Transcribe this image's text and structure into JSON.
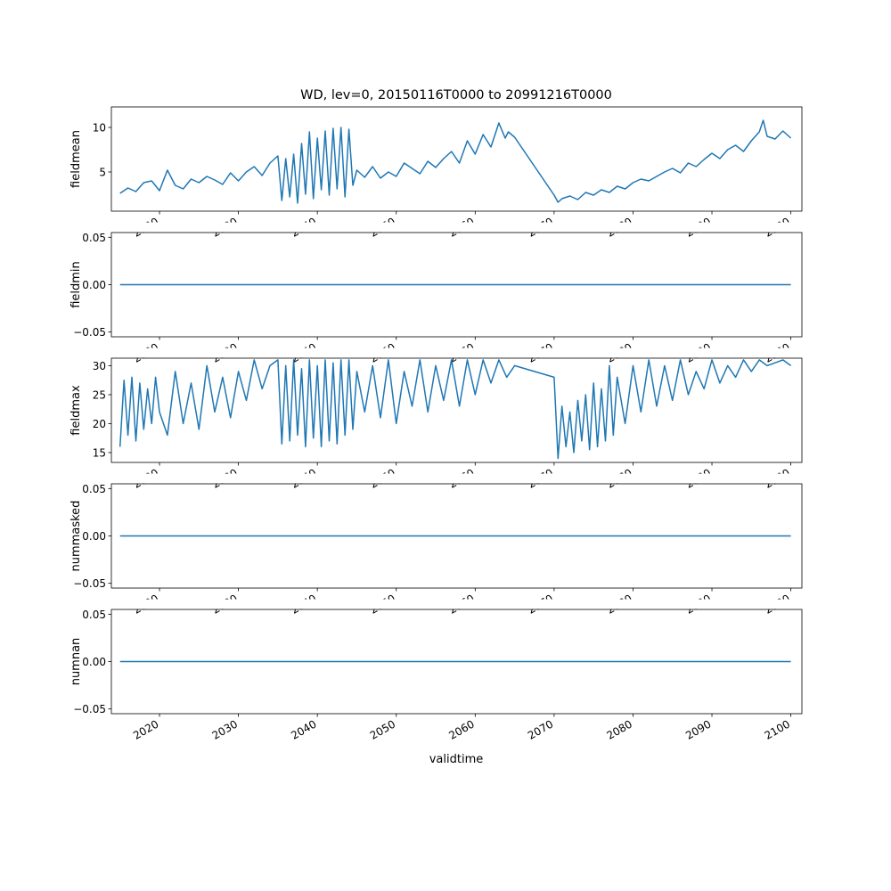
{
  "figure_title": "WD, lev=0, 20150116T0000 to 20991216T0000",
  "xlabel": "validtime",
  "line_color": "#1f77b4",
  "x_ticks": [
    "2020",
    "2030",
    "2040",
    "2050",
    "2060",
    "2070",
    "2080",
    "2090",
    "2100"
  ],
  "chart_data": [
    {
      "type": "line",
      "ylabel": "fieldmean",
      "xlim": [
        2013.9,
        2101.4
      ],
      "ylim": [
        0.6,
        12.3
      ],
      "yticks": [
        "5",
        "10"
      ],
      "ytick_values": [
        5,
        10
      ],
      "x": [
        2015.0,
        2016.0,
        2017.0,
        2018.0,
        2019.0,
        2020.0,
        2021.0,
        2022.0,
        2023.0,
        2024.0,
        2025.0,
        2026.0,
        2027.0,
        2028.0,
        2029.0,
        2030.0,
        2031.0,
        2032.0,
        2033.0,
        2034.0,
        2035.0,
        2035.5,
        2036.0,
        2036.5,
        2037.0,
        2037.5,
        2038.0,
        2038.5,
        2039.0,
        2039.5,
        2040.0,
        2040.5,
        2041.0,
        2041.5,
        2042.0,
        2042.5,
        2043.0,
        2043.5,
        2044.0,
        2044.5,
        2045.0,
        2046.0,
        2047.0,
        2048.0,
        2049.0,
        2050.0,
        2051.0,
        2052.0,
        2053.0,
        2054.0,
        2055.0,
        2056.0,
        2057.0,
        2058.0,
        2059.0,
        2060.0,
        2061.0,
        2062.0,
        2063.0,
        2063.8,
        2064.2,
        2065.0,
        2070.0,
        2070.5,
        2071.0,
        2072.0,
        2073.0,
        2074.0,
        2075.0,
        2076.0,
        2077.0,
        2078.0,
        2079.0,
        2080.0,
        2081.0,
        2082.0,
        2083.0,
        2084.0,
        2085.0,
        2086.0,
        2087.0,
        2088.0,
        2089.0,
        2090.0,
        2091.0,
        2092.0,
        2093.0,
        2094.0,
        2095.0,
        2096.0,
        2096.5,
        2097.0,
        2098.0,
        2099.0,
        2100.0
      ],
      "y": [
        2.6,
        3.2,
        2.8,
        3.8,
        4.0,
        2.9,
        5.2,
        3.5,
        3.1,
        4.2,
        3.8,
        4.5,
        4.1,
        3.6,
        4.9,
        4.0,
        5.0,
        5.6,
        4.6,
        6.0,
        6.8,
        1.8,
        6.5,
        2.2,
        7.0,
        1.5,
        8.2,
        2.5,
        9.5,
        2.0,
        8.8,
        3.0,
        9.6,
        2.4,
        9.9,
        3.1,
        10.0,
        2.2,
        9.8,
        3.5,
        5.2,
        4.4,
        5.6,
        4.3,
        5.0,
        4.5,
        6.0,
        5.4,
        4.8,
        6.2,
        5.5,
        6.5,
        7.3,
        6.0,
        8.5,
        7.0,
        9.2,
        7.8,
        10.5,
        8.8,
        9.5,
        8.9,
        2.4,
        1.6,
        2.0,
        2.3,
        1.9,
        2.7,
        2.4,
        3.0,
        2.7,
        3.4,
        3.1,
        3.8,
        4.2,
        4.0,
        4.5,
        5.0,
        5.4,
        4.9,
        6.0,
        5.6,
        6.4,
        7.1,
        6.5,
        7.5,
        8.0,
        7.3,
        8.5,
        9.5,
        10.8,
        9.0,
        8.7,
        9.6,
        8.8
      ]
    },
    {
      "type": "line",
      "ylabel": "fieldmin",
      "xlim": [
        2013.9,
        2101.4
      ],
      "ylim": [
        -0.055,
        0.055
      ],
      "yticks": [
        "−0.05",
        "0.00",
        "0.05"
      ],
      "ytick_values": [
        -0.05,
        0.0,
        0.05
      ],
      "x": [
        2015.0,
        2100.0
      ],
      "y": [
        0.0,
        0.0
      ]
    },
    {
      "type": "line",
      "ylabel": "fieldmax",
      "xlim": [
        2013.9,
        2101.4
      ],
      "ylim": [
        13.3,
        31.3
      ],
      "yticks": [
        "15",
        "20",
        "25",
        "30"
      ],
      "ytick_values": [
        15,
        20,
        25,
        30
      ],
      "x": [
        2015.0,
        2015.5,
        2016.0,
        2016.5,
        2017.0,
        2017.5,
        2018.0,
        2018.5,
        2019.0,
        2019.5,
        2020.0,
        2021.0,
        2022.0,
        2023.0,
        2024.0,
        2025.0,
        2026.0,
        2027.0,
        2028.0,
        2029.0,
        2030.0,
        2031.0,
        2032.0,
        2033.0,
        2034.0,
        2035.0,
        2035.5,
        2036.0,
        2036.5,
        2037.0,
        2037.5,
        2038.0,
        2038.5,
        2039.0,
        2039.5,
        2040.0,
        2040.5,
        2041.0,
        2041.5,
        2042.0,
        2042.5,
        2043.0,
        2043.5,
        2044.0,
        2044.5,
        2045.0,
        2046.0,
        2047.0,
        2048.0,
        2049.0,
        2050.0,
        2051.0,
        2052.0,
        2053.0,
        2054.0,
        2055.0,
        2056.0,
        2057.0,
        2058.0,
        2059.0,
        2060.0,
        2061.0,
        2062.0,
        2063.0,
        2064.0,
        2065.0,
        2070.0,
        2070.5,
        2071.0,
        2071.5,
        2072.0,
        2072.5,
        2073.0,
        2073.5,
        2074.0,
        2074.5,
        2075.0,
        2075.5,
        2076.0,
        2076.5,
        2077.0,
        2077.5,
        2078.0,
        2079.0,
        2080.0,
        2081.0,
        2082.0,
        2083.0,
        2084.0,
        2085.0,
        2086.0,
        2087.0,
        2088.0,
        2089.0,
        2090.0,
        2091.0,
        2092.0,
        2093.0,
        2094.0,
        2095.0,
        2096.0,
        2097.0,
        2098.0,
        2099.0,
        2100.0
      ],
      "y": [
        16.0,
        27.5,
        18.0,
        28.0,
        17.0,
        27.0,
        19.0,
        26.0,
        20.0,
        28.0,
        22.0,
        18.0,
        29.0,
        20.0,
        27.0,
        19.0,
        30.0,
        22.0,
        28.0,
        21.0,
        29.0,
        24.0,
        31.0,
        26.0,
        30.0,
        31.0,
        16.5,
        30.0,
        17.0,
        31.0,
        18.0,
        29.5,
        16.0,
        31.0,
        17.5,
        30.0,
        16.0,
        31.0,
        17.0,
        30.5,
        16.5,
        31.0,
        18.0,
        31.0,
        19.0,
        29.0,
        22.0,
        30.0,
        21.0,
        31.0,
        20.0,
        29.0,
        23.0,
        31.0,
        22.0,
        30.0,
        24.0,
        31.0,
        23.0,
        31.0,
        25.0,
        31.0,
        27.0,
        31.0,
        28.0,
        30.0,
        28.0,
        14.0,
        23.0,
        16.0,
        22.0,
        15.0,
        24.0,
        17.0,
        25.0,
        15.5,
        27.0,
        16.0,
        26.0,
        17.0,
        30.0,
        18.0,
        28.0,
        20.0,
        30.0,
        22.0,
        31.0,
        23.0,
        30.0,
        24.0,
        31.0,
        25.0,
        29.0,
        26.0,
        31.0,
        27.0,
        30.0,
        28.0,
        31.0,
        29.0,
        31.0,
        30.0,
        30.5,
        31.0,
        30.0
      ]
    },
    {
      "type": "line",
      "ylabel": "nummasked",
      "xlim": [
        2013.9,
        2101.4
      ],
      "ylim": [
        -0.055,
        0.055
      ],
      "yticks": [
        "−0.05",
        "0.00",
        "0.05"
      ],
      "ytick_values": [
        -0.05,
        0.0,
        0.05
      ],
      "x": [
        2015.0,
        2100.0
      ],
      "y": [
        0.0,
        0.0
      ]
    },
    {
      "type": "line",
      "ylabel": "numnan",
      "xlim": [
        2013.9,
        2101.4
      ],
      "ylim": [
        -0.055,
        0.055
      ],
      "yticks": [
        "−0.05",
        "0.00",
        "0.05"
      ],
      "ytick_values": [
        -0.05,
        0.0,
        0.05
      ],
      "x": [
        2015.0,
        2100.0
      ],
      "y": [
        0.0,
        0.0
      ]
    }
  ]
}
